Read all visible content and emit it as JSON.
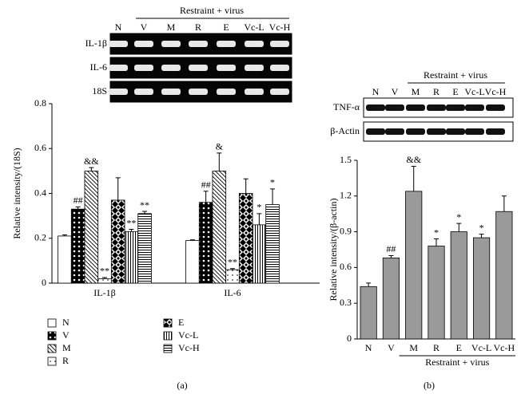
{
  "chart_data": [
    {
      "type": "grouped_bar",
      "panel_label": "(a)",
      "blot": {
        "header": "Restraint + virus",
        "lanes": [
          "N",
          "V",
          "M",
          "R",
          "E",
          "Vc-L",
          "Vc-H"
        ],
        "rows": [
          "IL-1β",
          "IL-6",
          "18S"
        ]
      },
      "y_label": "Relative intensity/(18S)",
      "categories": [
        "IL-1β",
        "IL-6"
      ],
      "ylim": [
        0,
        0.8
      ],
      "yticks": [
        0,
        0.2,
        0.4,
        0.6,
        0.8
      ],
      "series": [
        {
          "name": "N",
          "pattern": "white",
          "values": [
            0.21,
            0.19
          ],
          "errors": [
            0.005,
            0.003
          ],
          "annotations": [
            null,
            null
          ]
        },
        {
          "name": "V",
          "pattern": "dots-on-black",
          "values": [
            0.33,
            0.36
          ],
          "errors": [
            0.01,
            0.05
          ],
          "annotations": [
            "##",
            "##"
          ]
        },
        {
          "name": "M",
          "pattern": "diagonal",
          "values": [
            0.5,
            0.5
          ],
          "errors": [
            0.015,
            0.08
          ],
          "annotations": [
            "&&",
            "&"
          ]
        },
        {
          "name": "R",
          "pattern": "dots-on-white",
          "values": [
            0.02,
            0.06
          ],
          "errors": [
            0.005,
            0.005
          ],
          "annotations": [
            "**",
            "**"
          ]
        },
        {
          "name": "E",
          "pattern": "checker",
          "values": [
            0.37,
            0.4
          ],
          "errors": [
            0.1,
            0.065
          ],
          "annotations": [
            null,
            null
          ]
        },
        {
          "name": "Vc-L",
          "pattern": "vertical",
          "values": [
            0.23,
            0.26
          ],
          "errors": [
            0.01,
            0.05
          ],
          "annotations": [
            "**",
            "*"
          ]
        },
        {
          "name": "Vc-H",
          "pattern": "horizontal",
          "values": [
            0.31,
            0.35
          ],
          "errors": [
            0.01,
            0.07
          ],
          "annotations": [
            "**",
            "*"
          ]
        }
      ]
    },
    {
      "type": "bar",
      "panel_label": "(b)",
      "blot": {
        "header": "Restraint + virus",
        "lanes": [
          "N",
          "V",
          "M",
          "R",
          "E",
          "Vc-L",
          "Vc-H"
        ],
        "rows": [
          "TNF-α",
          "β-Actin"
        ]
      },
      "y_label": "Relative intensity/(β-actin)",
      "categories": [
        "N",
        "V",
        "M",
        "R",
        "E",
        "Vc-L",
        "Vc-H"
      ],
      "group_label": "Restraint + virus",
      "color": "#9a9a9a",
      "values": [
        0.44,
        0.68,
        1.24,
        0.78,
        0.9,
        0.85,
        1.07
      ],
      "errors": [
        0.03,
        0.02,
        0.21,
        0.06,
        0.07,
        0.03,
        0.13
      ],
      "annotations": [
        null,
        "##",
        "&&",
        "*",
        "*",
        "*",
        null
      ],
      "ylim": [
        0,
        1.5
      ],
      "yticks": [
        0,
        0.3,
        0.6,
        0.9,
        1.2,
        1.5
      ]
    }
  ]
}
